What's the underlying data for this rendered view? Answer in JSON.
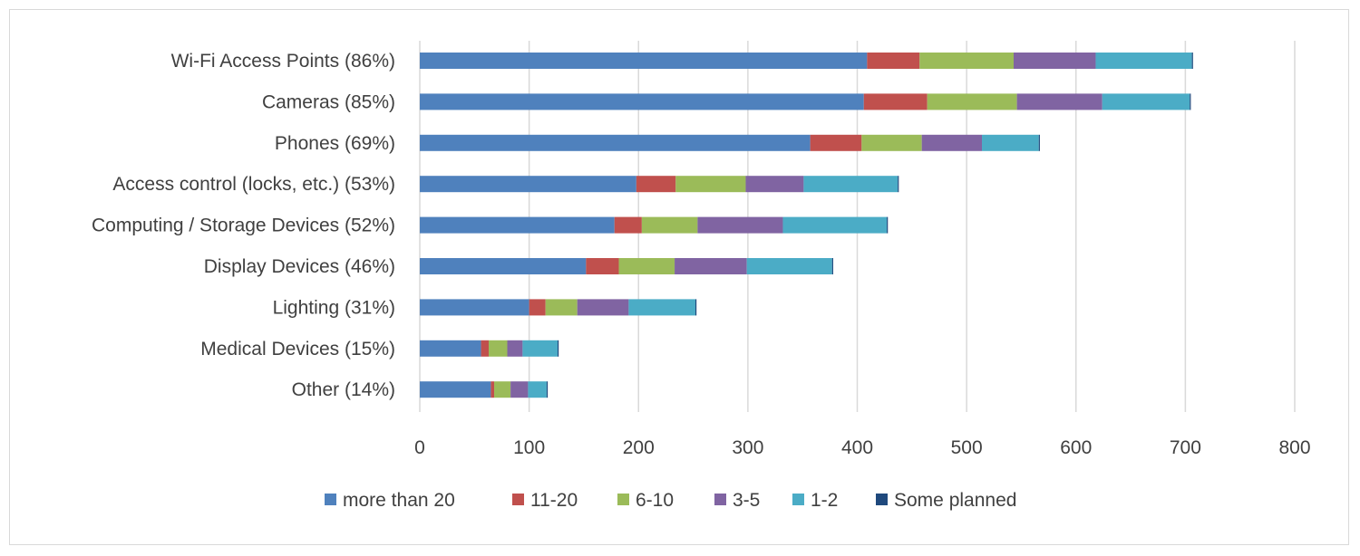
{
  "chart_data": {
    "type": "bar",
    "orientation": "horizontal",
    "stacked": true,
    "title": "",
    "xlabel": "",
    "ylabel": "",
    "xlim": [
      0,
      800
    ],
    "x_ticks": [
      "0",
      "100",
      "200",
      "300",
      "400",
      "500",
      "600",
      "700",
      "800"
    ],
    "grid": true,
    "legend_position": "bottom",
    "categories": [
      "Wi-Fi Access Points (86%)",
      "Cameras (85%)",
      "Phones (69%)",
      "Access control (locks, etc.) (53%)",
      "Computing / Storage Devices (52%)",
      "Display Devices (46%)",
      "Lighting (31%)",
      "Medical Devices (15%)",
      "Other (14%)"
    ],
    "series": [
      {
        "name": "more than 20",
        "color": "#4f81bd",
        "values": [
          409,
          406,
          357,
          198,
          178,
          152,
          100,
          56,
          65
        ]
      },
      {
        "name": "11-20",
        "color": "#c0504d",
        "values": [
          48,
          58,
          47,
          36,
          25,
          30,
          15,
          7,
          3
        ]
      },
      {
        "name": "6-10",
        "color": "#9bbb59",
        "values": [
          86,
          82,
          55,
          64,
          51,
          51,
          29,
          17,
          15
        ]
      },
      {
        "name": "3-5",
        "color": "#8064a2",
        "values": [
          75,
          78,
          55,
          53,
          78,
          66,
          47,
          14,
          16
        ]
      },
      {
        "name": "1-2",
        "color": "#4bacc6",
        "values": [
          88,
          80,
          52,
          86,
          95,
          78,
          61,
          32,
          17
        ]
      },
      {
        "name": "Some planned",
        "color": "#1f497d",
        "values": [
          1,
          1,
          1,
          1,
          1,
          1,
          1,
          1,
          1
        ]
      }
    ]
  }
}
